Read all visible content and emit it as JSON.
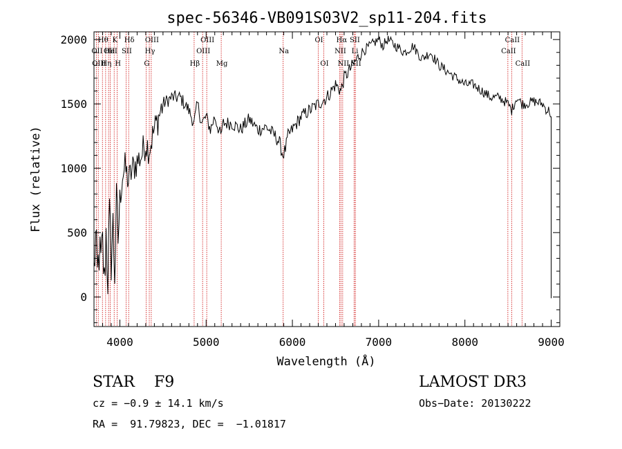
{
  "chart_data": {
    "type": "line",
    "title": "spec-56346-VB091S03V2_sp11-204.fits",
    "xlabel": "Wavelength (Å)",
    "ylabel": "Flux (relative)",
    "xlim": [
      3700,
      9100
    ],
    "ylim": [
      -230,
      2060
    ],
    "xticks": [
      4000,
      5000,
      6000,
      7000,
      8000,
      9000
    ],
    "xtick_labels": [
      "4000",
      "5000",
      "6000",
      "7000",
      "8000",
      "9000"
    ],
    "yticks": [
      0,
      500,
      1000,
      1500,
      2000
    ],
    "ytick_labels": [
      "0",
      "500",
      "1000",
      "1500",
      "2000"
    ],
    "grid": false,
    "series": [
      {
        "name": "flux",
        "x": [
          3700,
          3720,
          3740,
          3760,
          3780,
          3800,
          3820,
          3840,
          3860,
          3880,
          3900,
          3920,
          3940,
          3960,
          3980,
          4000,
          4030,
          4060,
          4100,
          4150,
          4200,
          4250,
          4300,
          4340,
          4400,
          4500,
          4600,
          4700,
          4800,
          4860,
          4900,
          4950,
          5000,
          5050,
          5100,
          5170,
          5200,
          5300,
          5400,
          5500,
          5600,
          5700,
          5800,
          5850,
          5890,
          5920,
          5950,
          6000,
          6100,
          6200,
          6300,
          6400,
          6500,
          6563,
          6600,
          6650,
          6700,
          6750,
          6800,
          6900,
          7000,
          7050,
          7100,
          7200,
          7300,
          7400,
          7500,
          7600,
          7700,
          7800,
          7900,
          8000,
          8100,
          8200,
          8300,
          8400,
          8500,
          8542,
          8600,
          8662,
          8700,
          8800,
          8900,
          8950,
          8980,
          9000,
          9000
        ],
        "y": [
          200,
          450,
          150,
          350,
          250,
          400,
          100,
          500,
          150,
          600,
          300,
          550,
          200,
          700,
          450,
          750,
          950,
          1000,
          900,
          1000,
          1050,
          1100,
          1200,
          1150,
          1300,
          1500,
          1550,
          1550,
          1450,
          1350,
          1500,
          1350,
          1400,
          1300,
          1400,
          1250,
          1350,
          1350,
          1300,
          1380,
          1300,
          1320,
          1250,
          1200,
          1100,
          1150,
          1250,
          1300,
          1400,
          1450,
          1500,
          1550,
          1650,
          1600,
          1700,
          1750,
          1800,
          1850,
          1900,
          1950,
          2000,
          1950,
          2000,
          1950,
          1900,
          1950,
          1850,
          1900,
          1800,
          1750,
          1700,
          1650,
          1650,
          1600,
          1550,
          1550,
          1500,
          1450,
          1550,
          1500,
          1500,
          1520,
          1500,
          1450,
          1450,
          1400,
          -10
        ]
      }
    ],
    "lines": [
      {
        "wave": 3727,
        "label": "OII",
        "row": 2
      },
      {
        "wave": 3750,
        "label": "OIII",
        "row": 3
      },
      {
        "wave": 3798,
        "label": "Hθ",
        "row": 1
      },
      {
        "wave": 3835,
        "label": "Hη",
        "row": 3
      },
      {
        "wave": 3869,
        "label": "OII",
        "row": 2
      },
      {
        "wave": 3889,
        "label": "HeI",
        "row": 2
      },
      {
        "wave": 3934,
        "label": "K",
        "row": 1
      },
      {
        "wave": 3969,
        "label": "H",
        "row": 3
      },
      {
        "wave": 4072,
        "label": "SII",
        "row": 2
      },
      {
        "wave": 4102,
        "label": "Hδ",
        "row": 1
      },
      {
        "wave": 4304,
        "label": "G",
        "row": 3
      },
      {
        "wave": 4341,
        "label": "Hγ",
        "row": 2
      },
      {
        "wave": 4364,
        "label": "OIII",
        "row": 1
      },
      {
        "wave": 4861,
        "label": "Hβ",
        "row": 3
      },
      {
        "wave": 4959,
        "label": "OIII",
        "row": 2
      },
      {
        "wave": 5007,
        "label": "OIII",
        "row": 1
      },
      {
        "wave": 5175,
        "label": "Mg",
        "row": 3
      },
      {
        "wave": 5893,
        "label": "Na",
        "row": 2
      },
      {
        "wave": 6300,
        "label": "OI",
        "row": 1
      },
      {
        "wave": 6364,
        "label": "OI",
        "row": 3
      },
      {
        "wave": 6548,
        "label": "NII",
        "row": 2
      },
      {
        "wave": 6563,
        "label": "Hα",
        "row": 1
      },
      {
        "wave": 6583,
        "label": "NII",
        "row": 3
      },
      {
        "wave": 6716,
        "label": "SII",
        "row": 1
      },
      {
        "wave": 6717,
        "label": "Li",
        "row": 2
      },
      {
        "wave": 6731,
        "label": "SII",
        "row": 3
      },
      {
        "wave": 8498,
        "label": "CaII",
        "row": 2
      },
      {
        "wave": 8542,
        "label": "CaII",
        "row": 1
      },
      {
        "wave": 8662,
        "label": "CaII",
        "row": 3
      }
    ]
  },
  "info": {
    "class_label": "STAR    F9",
    "survey": "LAMOST DR3",
    "redshift": "cz = −0.9 ± 14.1 km/s",
    "obs_date": "Obs−Date: 20130222",
    "coords": "RA =  91.79823, DEC =  −1.01817"
  },
  "colors": {
    "line": "#000000",
    "marker": "#cc0000",
    "background": "#ffffff"
  }
}
